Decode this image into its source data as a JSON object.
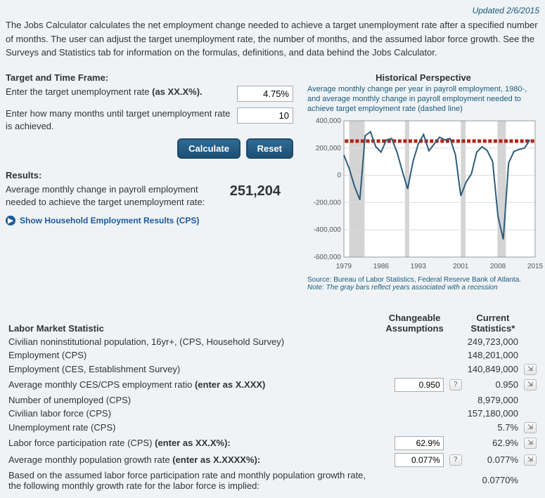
{
  "updated": "Updated 2/6/2015",
  "intro": "The Jobs Calculator calculates the net employment change needed to achieve a target unemployment rate after a specified number of months. The user can adjust the target unemployment rate, the number of months, and the assumed labor force growth. See the Surveys and Statistics tab for information on the formulas, definitions, and data behind the Jobs Calculator.",
  "target": {
    "heading": "Target and Time Frame:",
    "rate_label": "Enter the target unemployment rate (as XX.X%).",
    "rate_value": "4.75%",
    "months_label": "Enter how many months until target unemployment rate is achieved.",
    "months_value": "10",
    "calculate": "Calculate",
    "reset": "Reset"
  },
  "results": {
    "heading": "Results:",
    "label": "Average monthly change in payroll employment needed to achieve the target unemployment rate:",
    "value": "251,204",
    "show_link": "Show Household Employment Results (CPS)"
  },
  "chart": {
    "title": "Historical Perspective",
    "subtitle": "Average monthly change per year in payroll employment, 1980-, and average monthly change in payroll employment needed to achieve target employment rate (dashed line)",
    "source": "Source: Bureau of Labor Statistics, Federal Reserve Bank of Atlanta.",
    "note": "Note: The gray bars reflect years associated with a recession",
    "y_ticks": [
      "400,000",
      "200,000",
      "0",
      "-200,000",
      "-400,000",
      "-600,000"
    ],
    "x_ticks": [
      "1979",
      "1986",
      "1993",
      "2001",
      "2008",
      "2015"
    ],
    "y_min": -600000,
    "y_max": 400000,
    "x_min": 1979,
    "x_max": 2015,
    "line_color": "#2e5d7a",
    "target_color": "#b02418",
    "target_value": 251204,
    "grid_color": "#dcdcdc",
    "recession_color": "#d4d4d4",
    "recessions": [
      [
        1980,
        1982.9
      ],
      [
        1990.5,
        1991.3
      ],
      [
        2001,
        2001.9
      ],
      [
        2007.9,
        2009.5
      ]
    ],
    "series": [
      [
        1979,
        150000
      ],
      [
        1980,
        50000
      ],
      [
        1981,
        -80000
      ],
      [
        1982,
        -180000
      ],
      [
        1983,
        290000
      ],
      [
        1984,
        320000
      ],
      [
        1985,
        210000
      ],
      [
        1986,
        170000
      ],
      [
        1987,
        260000
      ],
      [
        1988,
        270000
      ],
      [
        1989,
        170000
      ],
      [
        1990,
        30000
      ],
      [
        1991,
        -100000
      ],
      [
        1992,
        100000
      ],
      [
        1993,
        230000
      ],
      [
        1994,
        300000
      ],
      [
        1995,
        180000
      ],
      [
        1996,
        230000
      ],
      [
        1997,
        280000
      ],
      [
        1998,
        260000
      ],
      [
        1999,
        270000
      ],
      [
        2000,
        150000
      ],
      [
        2001,
        -150000
      ],
      [
        2002,
        -50000
      ],
      [
        2003,
        10000
      ],
      [
        2004,
        170000
      ],
      [
        2005,
        210000
      ],
      [
        2006,
        180000
      ],
      [
        2007,
        100000
      ],
      [
        2008,
        -300000
      ],
      [
        2009,
        -470000
      ],
      [
        2010,
        90000
      ],
      [
        2011,
        175000
      ],
      [
        2012,
        190000
      ],
      [
        2013,
        200000
      ],
      [
        2014,
        260000
      ]
    ]
  },
  "stats": {
    "head_label": "Labor Market Statistic",
    "head_assump": "Changeable Assumptions",
    "head_current": "Current Statistics*",
    "rows": [
      {
        "label": "Civilian noninstitutional population, 16yr+, (CPS, Household Survey)",
        "assump": "",
        "help": false,
        "current": "249,723,000",
        "ext": false
      },
      {
        "label": "Employment (CPS)",
        "assump": "",
        "help": false,
        "current": "148,201,000",
        "ext": false
      },
      {
        "label": "Employment (CES, Establishment Survey)",
        "assump": "",
        "help": false,
        "current": "140,849,000",
        "ext": true
      },
      {
        "label": "Average monthly CES/CPS employment ratio (enter as X.XXX)",
        "bold": "(enter as X.XXX)",
        "assump": "0.950",
        "help": true,
        "current": "0.950",
        "ext": true
      },
      {
        "label": "Number of unemployed (CPS)",
        "assump": "",
        "help": false,
        "current": "8,979,000",
        "ext": false
      },
      {
        "label": "Civilian labor force (CPS)",
        "assump": "",
        "help": false,
        "current": "157,180,000",
        "ext": false
      },
      {
        "label": "Unemployment rate (CPS)",
        "assump": "",
        "help": false,
        "current": "5.7%",
        "ext": true
      },
      {
        "label": "Labor force participation rate (CPS) (enter as XX.X%):",
        "bold": "(enter as XX.X%)",
        "assump": "62.9%",
        "help": false,
        "current": "62.9%",
        "ext": true
      },
      {
        "label": "Average monthly population growth rate (enter as X.XXXX%):",
        "bold": "(enter as X.XXXX%)",
        "assump": "0.077%",
        "help": true,
        "current": "0.077%",
        "ext": true
      },
      {
        "label": "Based on the assumed labor force participation rate and monthly population growth rate, the following monthly growth rate for the labor force is implied:",
        "assump": "",
        "help": false,
        "current": "0.0770%",
        "ext": false
      }
    ]
  }
}
